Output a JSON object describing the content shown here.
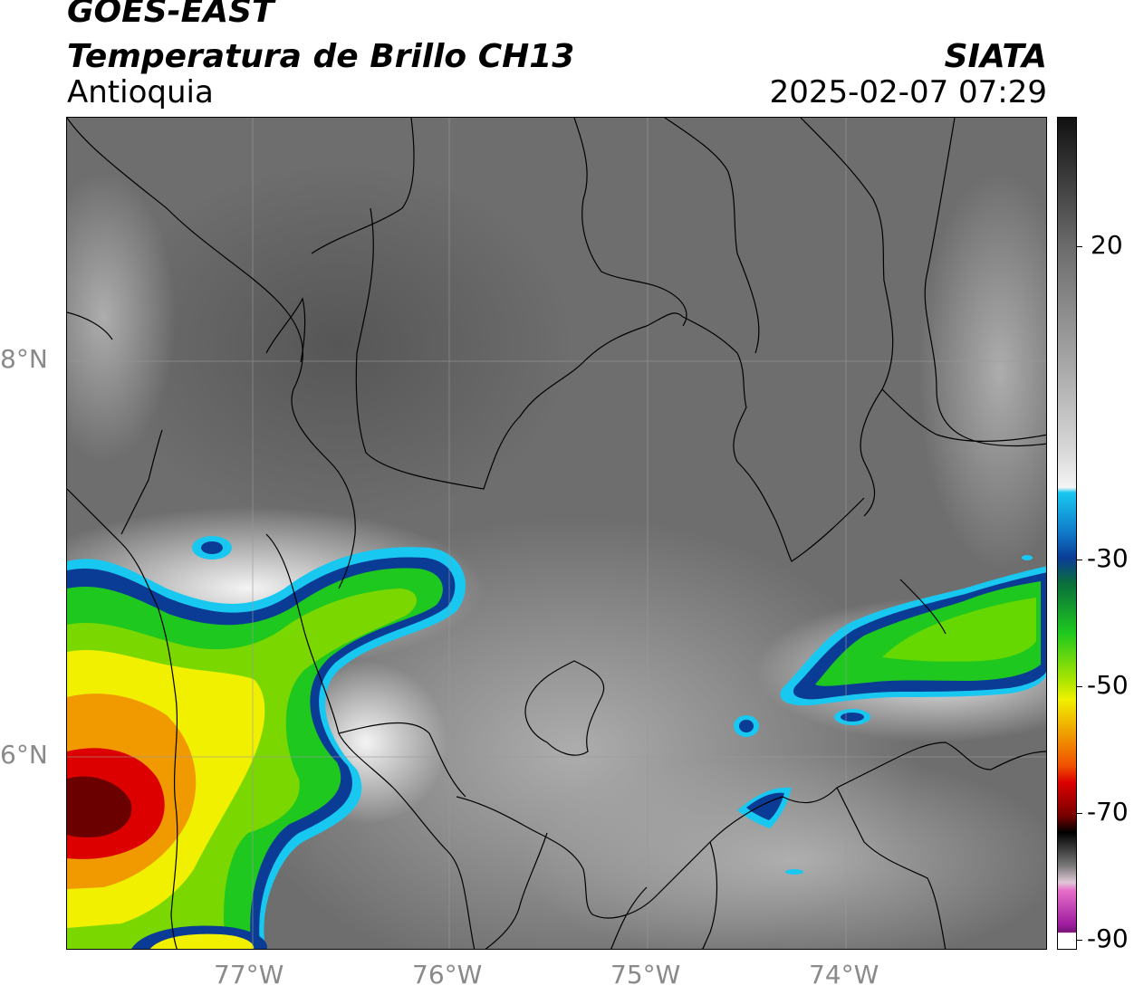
{
  "header": {
    "satellite": "GOES-EAST",
    "product": "Temperatura de Brillo CH13",
    "region": "Antioquia",
    "organization": "SIATA",
    "timestamp": "2025-02-07 07:29"
  },
  "map": {
    "lat_ticks": [
      "8°N",
      "6°N"
    ],
    "lon_ticks": [
      "77°W",
      "76°W",
      "75°W",
      "74°W"
    ]
  },
  "colorbar": {
    "ticks": [
      "20",
      "-30",
      "-50",
      "-70",
      "-90"
    ],
    "colors": {
      "warm_gray_top": "#1a1a1a",
      "mid_gray": "#8c8c8c",
      "white": "#f5f5f5",
      "cyan": "#19c8f0",
      "blue": "#0a3c96",
      "green": "#1ec81e",
      "yellow": "#f0f000",
      "orange": "#f09a00",
      "red": "#dc0000",
      "dark_red": "#500000",
      "pink": "#e66ec8",
      "purple": "#a01ea0"
    }
  }
}
